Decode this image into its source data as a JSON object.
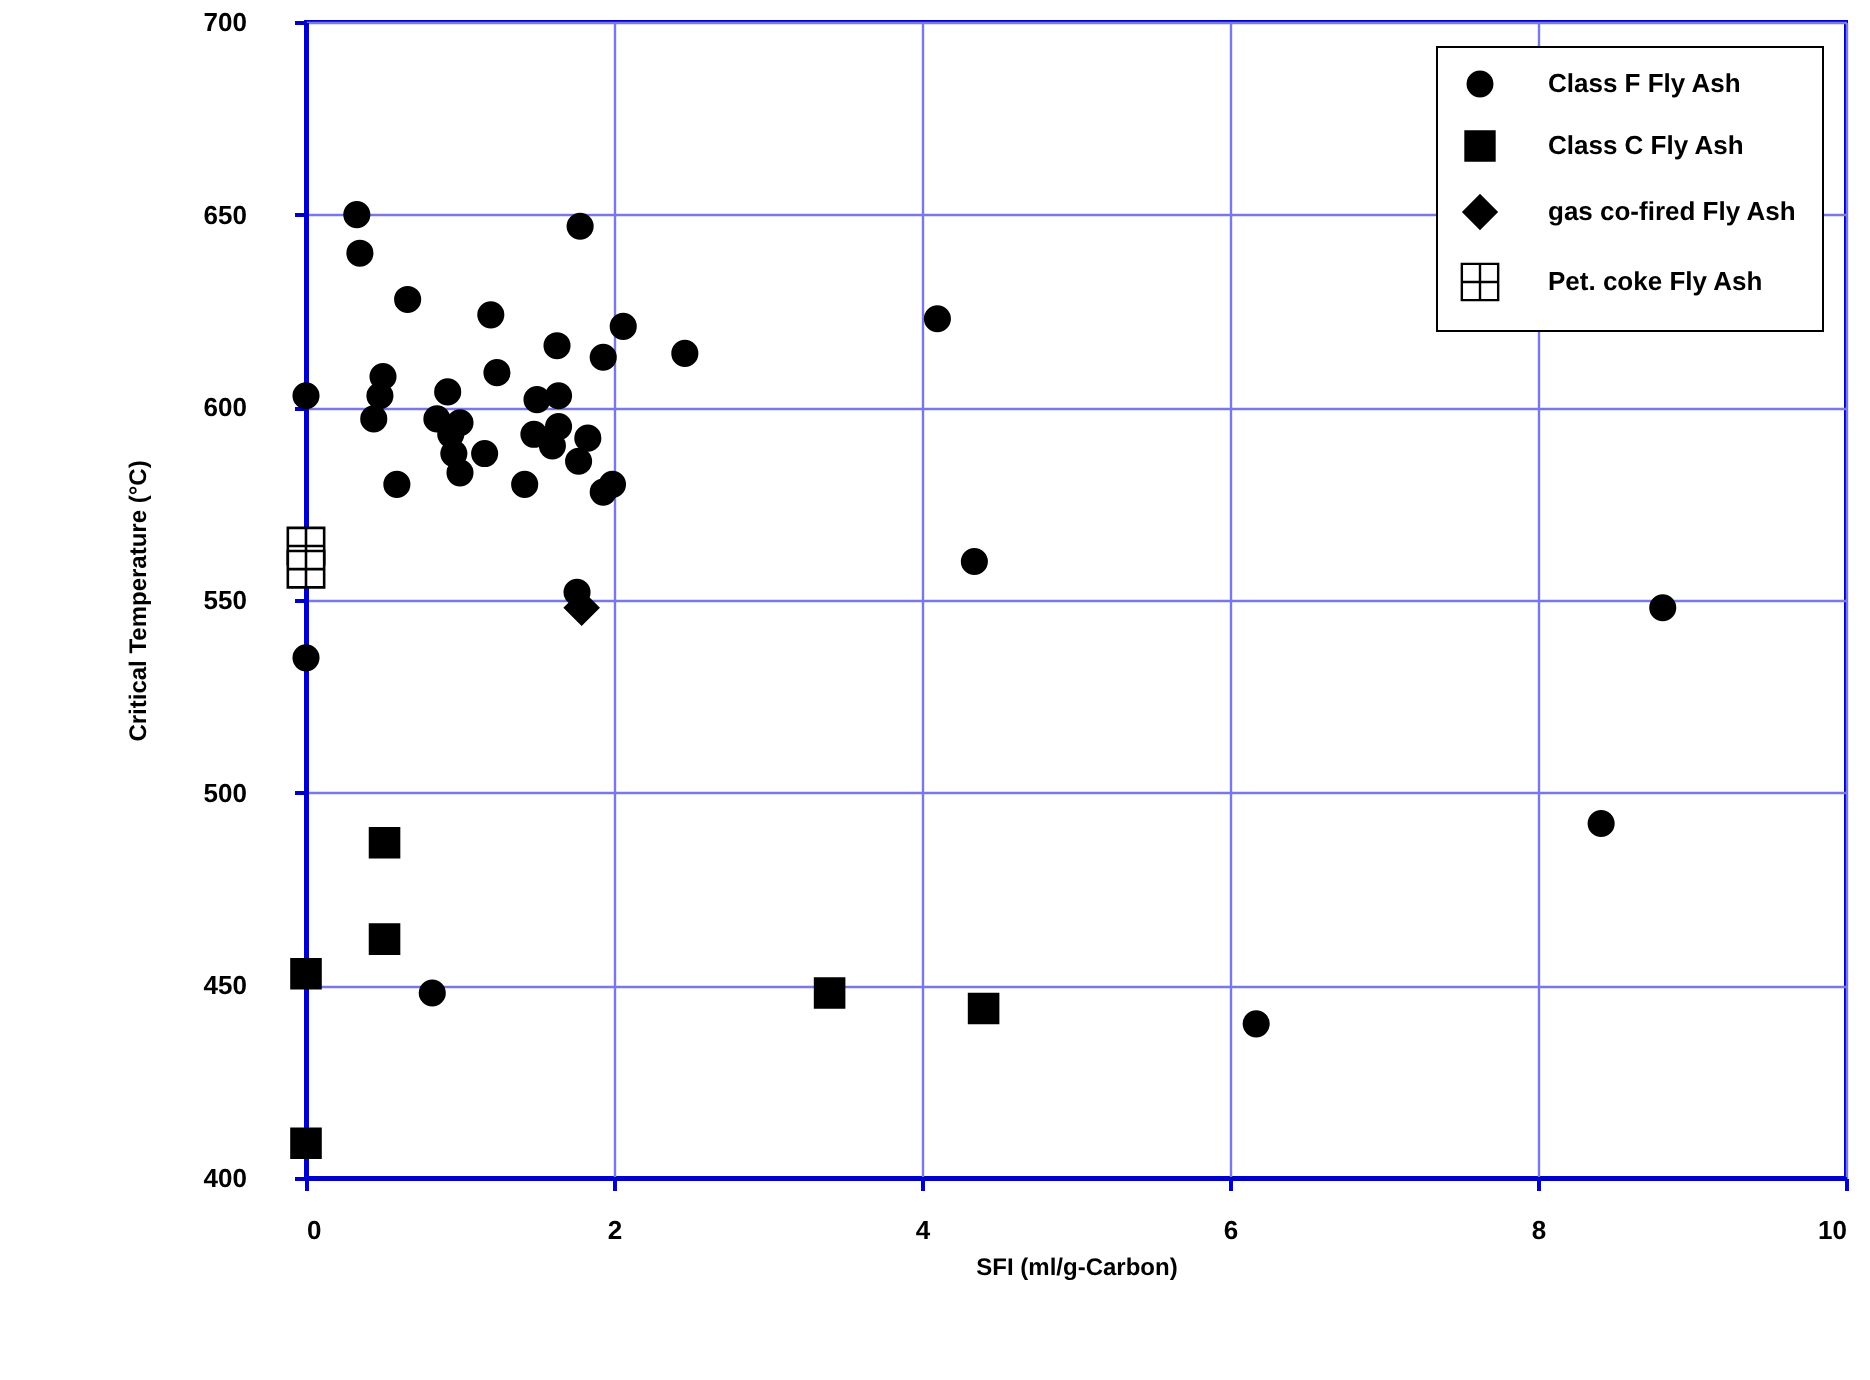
{
  "chart_data": {
    "type": "scatter",
    "xlabel": "SFI (ml/g-Carbon)",
    "ylabel": "Critical Temperature (°C)",
    "xlim": [
      0,
      10
    ],
    "ylim": [
      400,
      700
    ],
    "xticks": [
      0,
      2,
      4,
      6,
      8,
      10
    ],
    "yticks": [
      400,
      450,
      500,
      550,
      600,
      650,
      700
    ],
    "grid": true,
    "legend": "top right",
    "series": [
      {
        "name": "Class F Fly Ash",
        "color": "#000000",
        "marker": "circle",
        "x": [
          0.33,
          0.35,
          1.78,
          0.66,
          1.2,
          2.06,
          4.1,
          1.63,
          1.93,
          2.46,
          1.24,
          0.5,
          0.48,
          0,
          0.92,
          1.5,
          1.64,
          0.44,
          0.85,
          1.0,
          1.48,
          1.64,
          1.83,
          0.94,
          1.6,
          1.77,
          1.16,
          0.96,
          1.0,
          0.59,
          1.42,
          1.93,
          1.99,
          4.34,
          1.76,
          0,
          0.82,
          6.17,
          8.41,
          8.81
        ],
        "values": [
          650,
          640,
          647,
          628,
          624,
          621,
          623,
          616,
          613,
          614,
          609,
          608,
          603,
          603,
          604,
          602,
          603,
          597,
          597,
          596,
          593,
          595,
          592,
          593,
          590,
          586,
          588,
          588,
          583,
          580,
          580,
          578,
          580,
          560,
          552,
          535,
          448,
          440,
          492,
          548
        ]
      },
      {
        "name": "Class C Fly Ash",
        "color": "#000000",
        "marker": "square",
        "x": [
          0.51,
          0.51,
          0,
          0,
          3.4,
          4.4
        ],
        "values": [
          487,
          462,
          453,
          409,
          448,
          444
        ]
      },
      {
        "name": "gas co-fired Fly Ash",
        "color": "#000000",
        "marker": "diamond",
        "x": [
          1.79
        ],
        "values": [
          548
        ]
      },
      {
        "name": "Pet. coke Fly Ash",
        "color": "#000000",
        "marker": "cross",
        "x": [
          0,
          0
        ],
        "values": [
          564,
          558
        ]
      }
    ]
  }
}
